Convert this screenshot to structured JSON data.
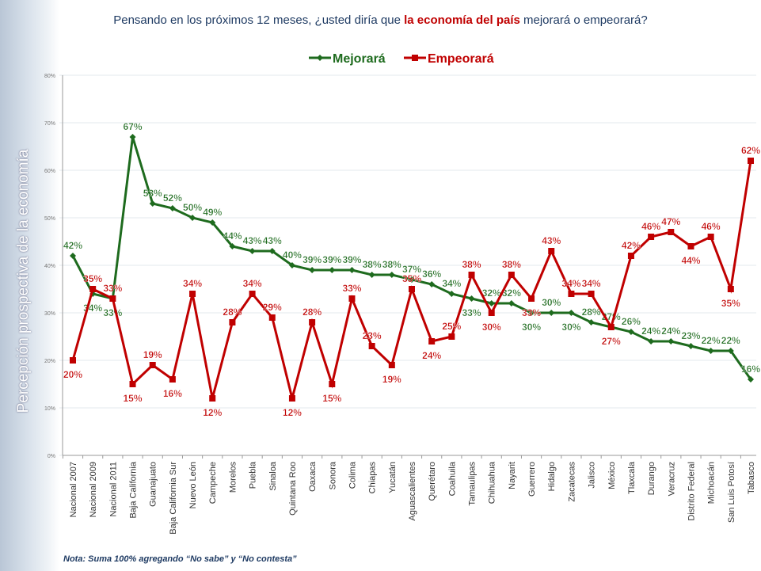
{
  "title": {
    "before": "Pensando en los próximos 12 meses, ¿usted diría que ",
    "highlight": "la economía del país",
    "after": " mejorará o empeorará?"
  },
  "note": "Nota: Suma 100% agregando “No sabe” y “No contesta”",
  "chart_data": {
    "type": "line",
    "ylabel": "Percepción prospectiva de la economía",
    "ylim": [
      0,
      80
    ],
    "yticks": [
      "0%",
      "10%",
      "20%",
      "30%",
      "40%",
      "50%",
      "60%",
      "70%",
      "80%"
    ],
    "grid": true,
    "legend": "top",
    "categories": [
      "Nacional 2007",
      "Nacional 2009",
      "Nacional 2011",
      "Baja California",
      "Guanajuato",
      "Baja California Sur",
      "Nuevo León",
      "Campeche",
      "Morelos",
      "Puebla",
      "Sinaloa",
      "Quintana Roo",
      "Oaxaca",
      "Sonora",
      "Colima",
      "Chiapas",
      "Yucatán",
      "Aguascalientes",
      "Querétaro",
      "Coahuila",
      "Tamaulipas",
      "Chihuahua",
      "Nayarit",
      "Guerrero",
      "Hidalgo",
      "Zacatecas",
      "Jalisco",
      "México",
      "Tlaxcala",
      "Durango",
      "Veracruz",
      "Distrito Federal",
      "Michoacán",
      "San Luis Potosí",
      "Tabasco"
    ],
    "series": [
      {
        "name": "Mejorará",
        "color": "#1e6b1e",
        "marker": "diamond",
        "values": [
          42,
          34,
          33,
          67,
          53,
          52,
          50,
          49,
          44,
          43,
          43,
          40,
          39,
          39,
          39,
          38,
          38,
          37,
          36,
          34,
          33,
          32,
          32,
          30,
          30,
          30,
          28,
          27,
          26,
          24,
          24,
          23,
          22,
          22,
          16
        ]
      },
      {
        "name": "Empeorará",
        "color": "#c00000",
        "marker": "square",
        "values": [
          20,
          35,
          33,
          15,
          19,
          16,
          34,
          12,
          28,
          34,
          29,
          12,
          28,
          15,
          33,
          23,
          19,
          35,
          24,
          25,
          38,
          30,
          38,
          33,
          43,
          34,
          34,
          27,
          42,
          46,
          47,
          44,
          46,
          35,
          62
        ]
      }
    ]
  }
}
